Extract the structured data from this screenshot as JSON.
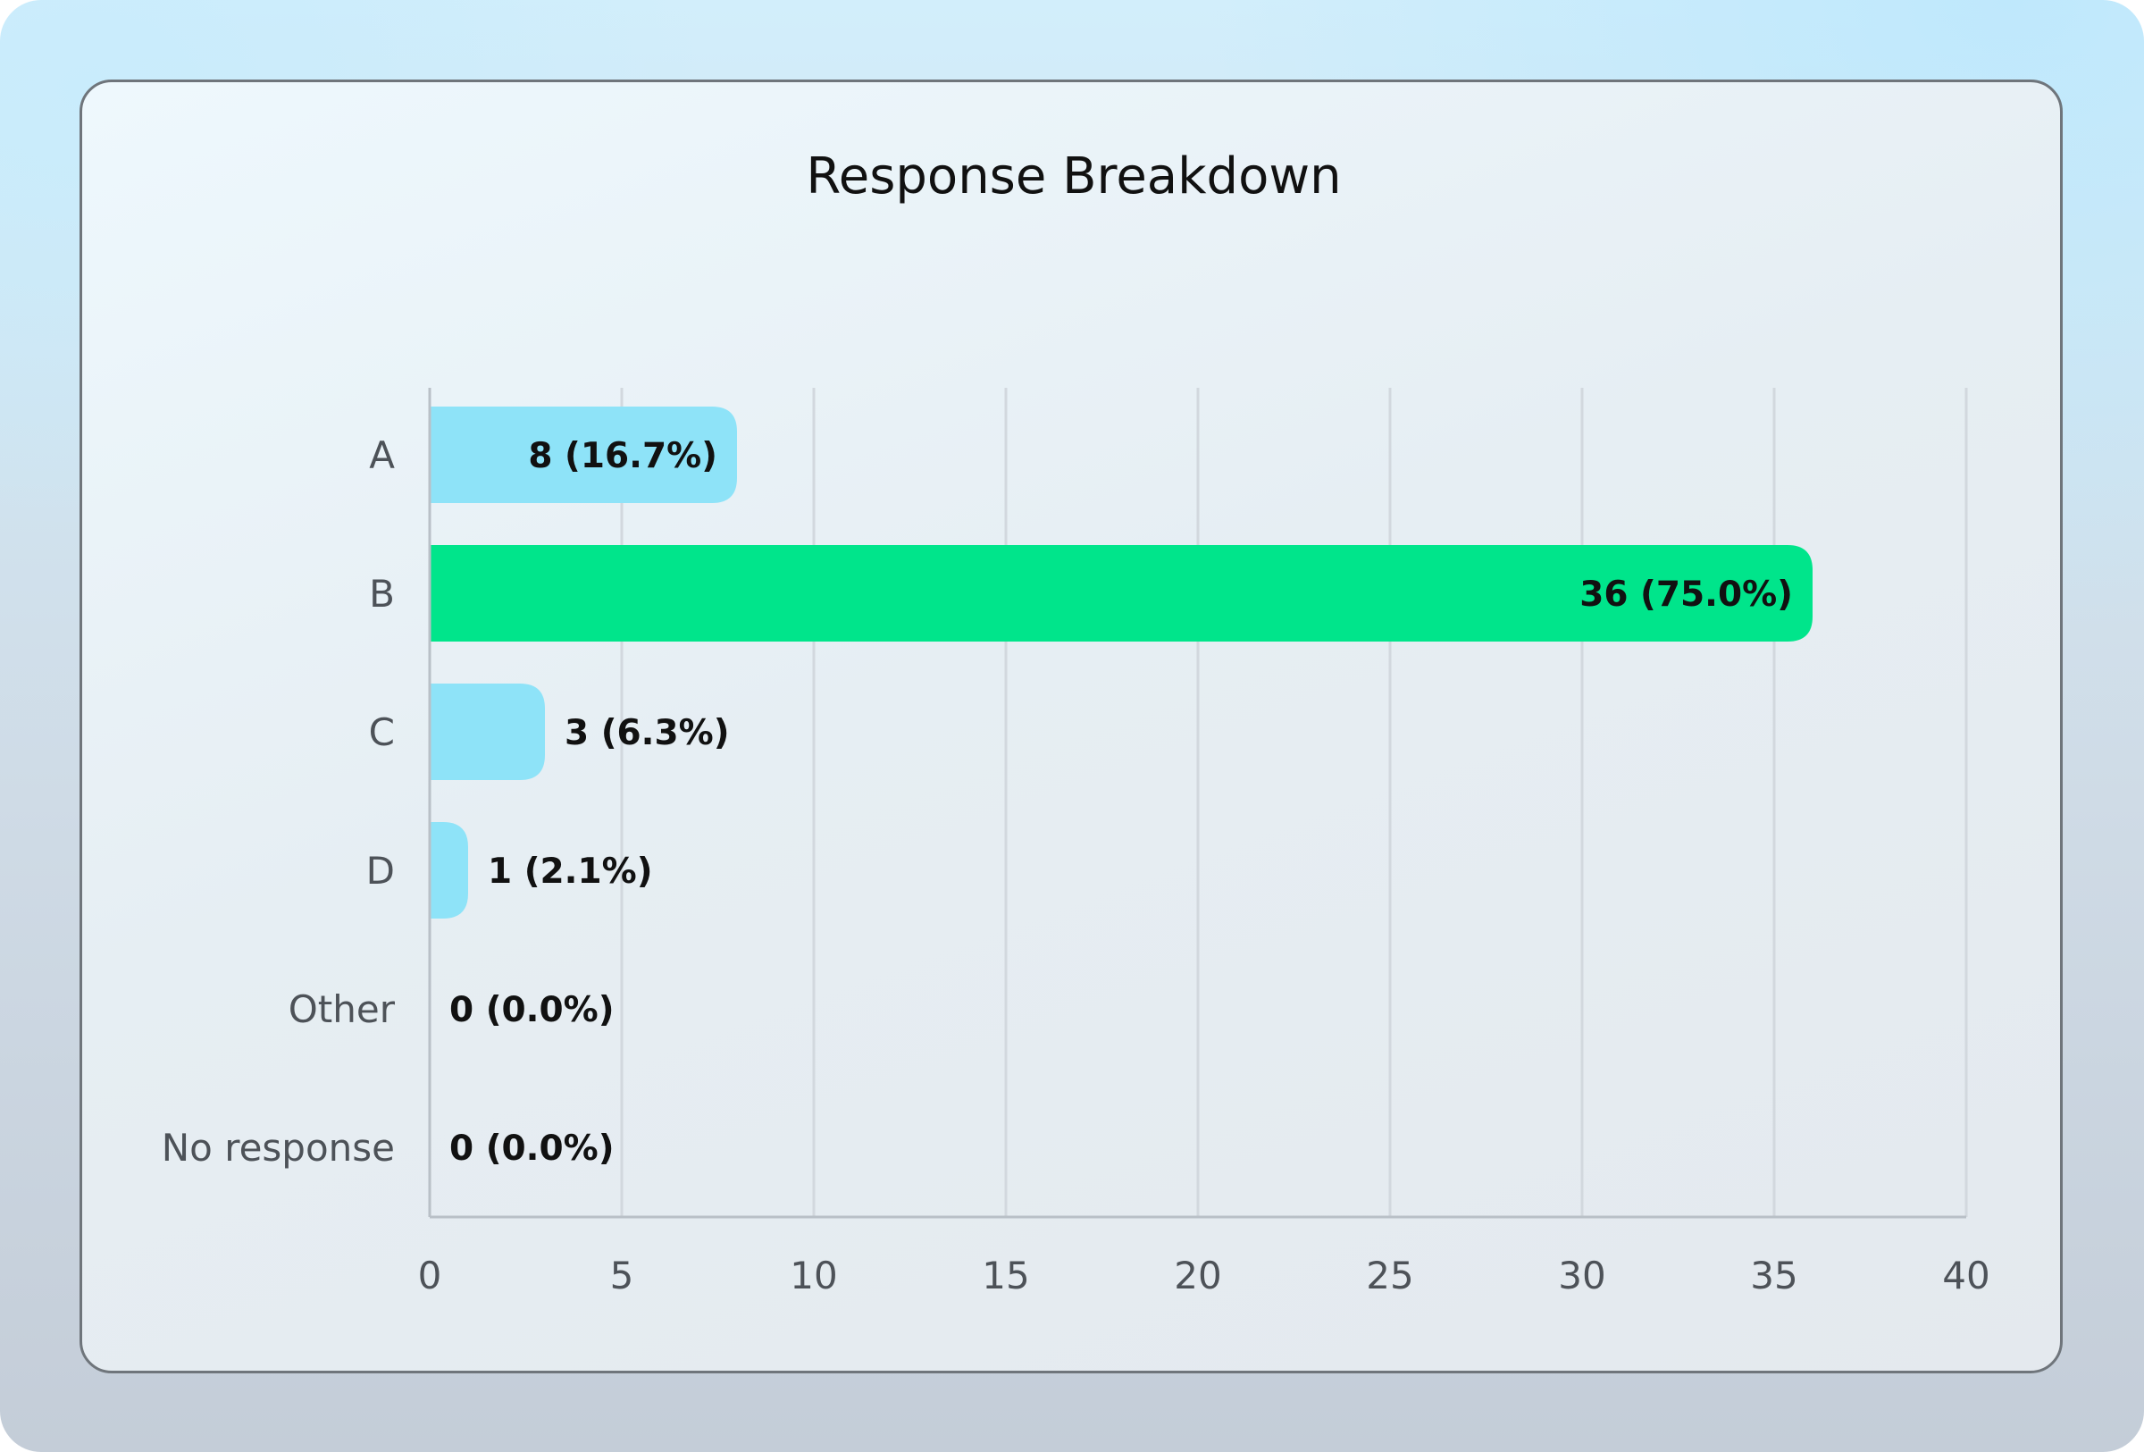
{
  "chart_data": {
    "type": "bar",
    "orientation": "horizontal",
    "title": "Response Breakdown",
    "xlabel": "",
    "ylabel": "",
    "categories": [
      "A",
      "B",
      "C",
      "D",
      "Other",
      "No response"
    ],
    "values": [
      8,
      36,
      3,
      1,
      0,
      0
    ],
    "data_labels": [
      "8 (16.7%)",
      "36 (75.0%)",
      "3 (6.3%)",
      "1 (2.1%)",
      "0 (0.0%)",
      "0 (0.0%)"
    ],
    "highlight_index": 1,
    "xlim": [
      0,
      40
    ],
    "xticks": [
      0,
      5,
      10,
      15,
      20,
      25,
      30,
      35,
      40
    ],
    "grid": true,
    "legend": "none",
    "colors": {
      "bar": "#8ee3f8",
      "highlight": "#00e58b",
      "grid": "#d2d8de",
      "axis": "#b9c0c7"
    }
  }
}
